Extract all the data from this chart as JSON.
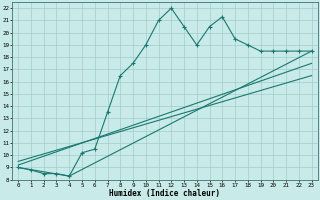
{
  "title": "",
  "xlabel": "Humidex (Indice chaleur)",
  "background_color": "#c8eae8",
  "grid_color": "#a0ccca",
  "line_color": "#1a7870",
  "xlim": [
    -0.5,
    23.5
  ],
  "ylim": [
    8,
    22.5
  ],
  "xticks": [
    0,
    1,
    2,
    3,
    4,
    5,
    6,
    7,
    8,
    9,
    10,
    11,
    12,
    13,
    14,
    15,
    16,
    17,
    18,
    19,
    20,
    21,
    22,
    23
  ],
  "yticks": [
    8,
    9,
    10,
    11,
    12,
    13,
    14,
    15,
    16,
    17,
    18,
    19,
    20,
    21,
    22
  ],
  "series1": [
    [
      0,
      9
    ],
    [
      1,
      8.8
    ],
    [
      2,
      8.5
    ],
    [
      3,
      8.5
    ],
    [
      4,
      8.3
    ],
    [
      5,
      10.2
    ],
    [
      6,
      10.5
    ],
    [
      7,
      13.5
    ],
    [
      8,
      16.5
    ],
    [
      9,
      17.5
    ],
    [
      10,
      19.0
    ],
    [
      11,
      21.0
    ],
    [
      12,
      22.0
    ],
    [
      13,
      20.5
    ],
    [
      14,
      19.0
    ],
    [
      15,
      20.5
    ],
    [
      16,
      21.3
    ],
    [
      17,
      19.5
    ],
    [
      18,
      19.0
    ],
    [
      19,
      18.5
    ],
    [
      20,
      18.5
    ],
    [
      21,
      18.5
    ],
    [
      22,
      18.5
    ],
    [
      23,
      18.5
    ]
  ],
  "line_straight1": [
    [
      0,
      9.0
    ],
    [
      4,
      8.3
    ],
    [
      23,
      18.5
    ]
  ],
  "line_straight2": [
    [
      0,
      9.2
    ],
    [
      23,
      17.5
    ]
  ],
  "line_straight3": [
    [
      0,
      9.5
    ],
    [
      23,
      16.5
    ]
  ]
}
